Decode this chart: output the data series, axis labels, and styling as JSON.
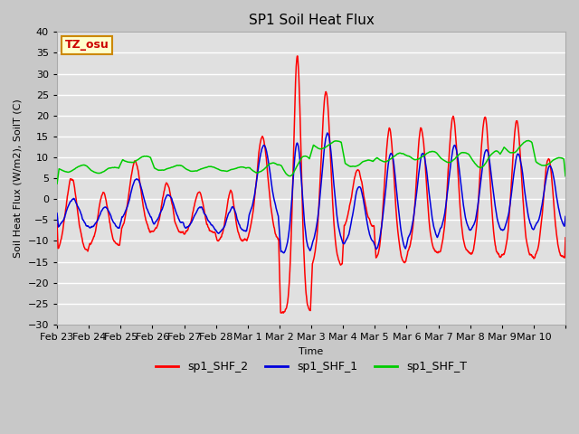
{
  "title": "SP1 Soil Heat Flux",
  "xlabel": "Time",
  "ylabel": "Soil Heat Flux (W/m2), SoilT (C)",
  "ylim": [
    -30,
    40
  ],
  "yticks": [
    -30,
    -25,
    -20,
    -15,
    -10,
    -5,
    0,
    5,
    10,
    15,
    20,
    25,
    30,
    35,
    40
  ],
  "x_tick_labels": [
    "Feb 23",
    "Feb 24",
    "Feb 25",
    "Feb 26",
    "Feb 27",
    "Feb 28",
    "Mar 1",
    "Mar 2",
    "Mar 3",
    "Mar 4",
    "Mar 5",
    "Mar 6",
    "Mar 7",
    "Mar 8",
    "Mar 9",
    "Mar 10"
  ],
  "color_shf2": "#ff0000",
  "color_shf1": "#0000dd",
  "color_shft": "#00cc00",
  "legend_labels": [
    "sp1_SHF_2",
    "sp1_SHF_1",
    "sp1_SHF_T"
  ],
  "annotation_text": "TZ_osu",
  "annotation_box_color": "#ffffcc",
  "annotation_box_edge": "#cc8800",
  "annotation_text_color": "#cc0000",
  "plot_bg_color": "#e0e0e0",
  "fig_bg_color": "#c8c8c8",
  "grid_color": "#ffffff",
  "title_fontsize": 11,
  "label_fontsize": 8,
  "tick_fontsize": 8
}
